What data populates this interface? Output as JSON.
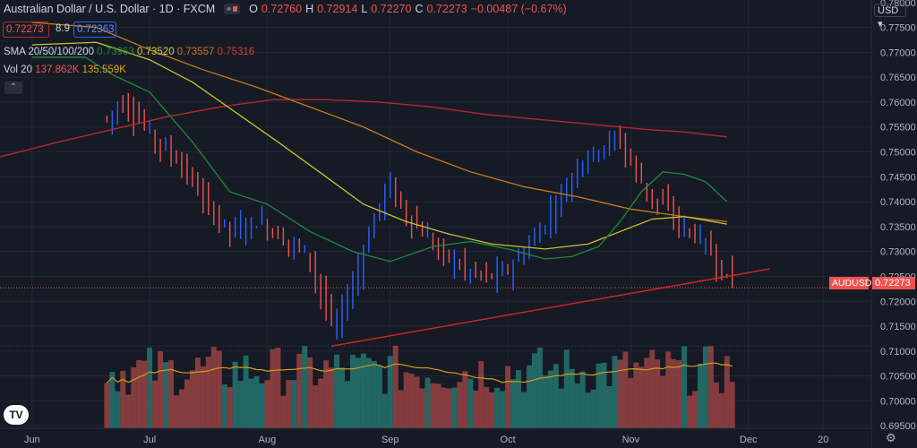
{
  "header": {
    "title": "Australian Dollar / U.S. Dollar · 1D · FXCM",
    "ohlc": [
      {
        "k": "O",
        "v": "0.72760"
      },
      {
        "k": "H",
        "v": "0.72914"
      },
      {
        "k": "L",
        "v": "0.72270"
      },
      {
        "k": "C",
        "v": "0.72273"
      }
    ],
    "change": "−0.00487 (−0.67%)",
    "sell_price": "0.72273",
    "spread": "8.9",
    "buy_price": "0.72363"
  },
  "sma": {
    "label": "SMA 20/50/100/200",
    "v20": "0.73963",
    "v50": "0.73520",
    "v100": "0.73557",
    "v200": "0.75316"
  },
  "volume": {
    "label": "Vol 20",
    "v": "137.862K",
    "ma": "135.559K"
  },
  "currency": "USD",
  "symbol_tag": "AUDUSD",
  "last_price": "0.72273",
  "colors": {
    "bg": "#161a25",
    "up": "#2962ff",
    "down": "#ef5350",
    "sma20": "#1f8a3a",
    "sma50": "#c6c22e",
    "sma100": "#c8781e",
    "sma200": "#b5262f",
    "vol_up": "#26827a",
    "vol_down": "#a94848",
    "vol_ma": "#d39a1c",
    "trend": "#c62828"
  },
  "chart_data": {
    "type": "line",
    "y_ticks": [
      "0.77500",
      "0.77000",
      "0.76500",
      "0.76000",
      "0.75500",
      "0.75000",
      "0.74500",
      "0.74000",
      "0.73500",
      "0.73000",
      "0.72500",
      "0.72000",
      "0.71500",
      "0.71000",
      "0.70500",
      "0.70000",
      "0.69500"
    ],
    "y_top_partial": "0.78000",
    "x_ticks": [
      {
        "label": "Jun",
        "day": 0
      },
      {
        "label": "Jul",
        "day": 22
      },
      {
        "label": "Aug",
        "day": 44
      },
      {
        "label": "Sep",
        "day": 67
      },
      {
        "label": "Oct",
        "day": 89
      },
      {
        "label": "Nov",
        "day": 112
      },
      {
        "label": "Dec",
        "day": 134
      },
      {
        "label": "20",
        "day": 148
      }
    ],
    "ylim": [
      0.6945,
      0.7805
    ],
    "price_range": [
      0.7085,
      0.7785
    ],
    "day_range": [
      -6,
      157
    ],
    "last_day": 131,
    "sma20": [
      [
        0,
        0.769
      ],
      [
        10,
        0.769
      ],
      [
        15,
        0.7655
      ],
      [
        22,
        0.762
      ],
      [
        30,
        0.752
      ],
      [
        37,
        0.742
      ],
      [
        44,
        0.7395
      ],
      [
        52,
        0.734
      ],
      [
        60,
        0.73
      ],
      [
        67,
        0.728
      ],
      [
        75,
        0.731
      ],
      [
        82,
        0.732
      ],
      [
        89,
        0.7305
      ],
      [
        96,
        0.7285
      ],
      [
        101,
        0.729
      ],
      [
        106,
        0.731
      ],
      [
        110,
        0.736
      ],
      [
        114,
        0.742
      ],
      [
        118,
        0.746
      ],
      [
        122,
        0.7455
      ],
      [
        126,
        0.744
      ],
      [
        130,
        0.74
      ]
    ],
    "sma50": [
      [
        0,
        0.7715
      ],
      [
        12,
        0.772
      ],
      [
        22,
        0.7685
      ],
      [
        30,
        0.764
      ],
      [
        38,
        0.758
      ],
      [
        46,
        0.752
      ],
      [
        55,
        0.745
      ],
      [
        62,
        0.7395
      ],
      [
        70,
        0.736
      ],
      [
        78,
        0.7335
      ],
      [
        86,
        0.7315
      ],
      [
        96,
        0.7305
      ],
      [
        104,
        0.7315
      ],
      [
        110,
        0.734
      ],
      [
        116,
        0.7365
      ],
      [
        122,
        0.737
      ],
      [
        130,
        0.7355
      ]
    ],
    "sma100": [
      [
        0,
        0.776
      ],
      [
        12,
        0.775
      ],
      [
        22,
        0.7705
      ],
      [
        32,
        0.7665
      ],
      [
        42,
        0.763
      ],
      [
        52,
        0.759
      ],
      [
        62,
        0.755
      ],
      [
        72,
        0.75
      ],
      [
        82,
        0.746
      ],
      [
        92,
        0.743
      ],
      [
        102,
        0.741
      ],
      [
        112,
        0.7385
      ],
      [
        122,
        0.737
      ],
      [
        130,
        0.736
      ]
    ],
    "sma200": [
      [
        -6,
        0.749
      ],
      [
        5,
        0.752
      ],
      [
        15,
        0.7545
      ],
      [
        25,
        0.757
      ],
      [
        35,
        0.759
      ],
      [
        45,
        0.7605
      ],
      [
        55,
        0.7605
      ],
      [
        65,
        0.76
      ],
      [
        75,
        0.759
      ],
      [
        85,
        0.7575
      ],
      [
        95,
        0.7565
      ],
      [
        105,
        0.7555
      ],
      [
        115,
        0.7545
      ],
      [
        122,
        0.754
      ],
      [
        130,
        0.753
      ]
    ],
    "trendline": [
      [
        56,
        0.711
      ],
      [
        138,
        0.7265
      ]
    ],
    "support_level": 0.711
  }
}
